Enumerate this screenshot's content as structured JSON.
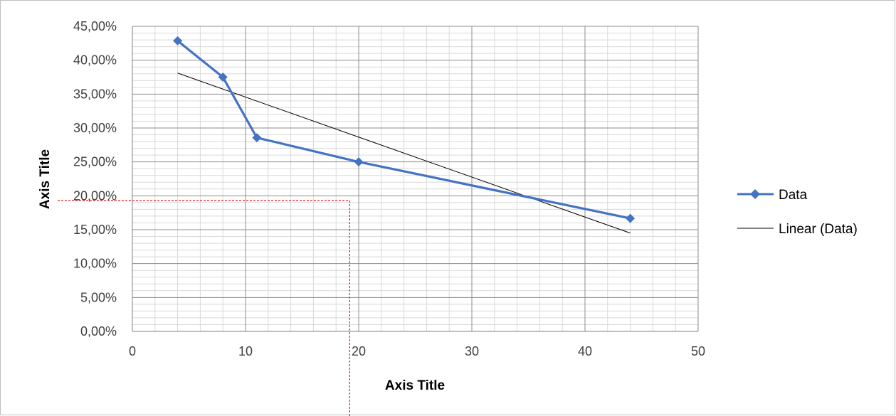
{
  "chart_data": {
    "type": "line",
    "xlabel": "Axis Title",
    "ylabel": "Axis Title",
    "xlim": [
      0,
      50
    ],
    "ylim": [
      0,
      0.45
    ],
    "x_ticks": [
      0,
      10,
      20,
      30,
      40,
      50
    ],
    "x_tick_labels": [
      "0",
      "10",
      "20",
      "30",
      "40",
      "50"
    ],
    "y_ticks": [
      0,
      0.05,
      0.1,
      0.15,
      0.2,
      0.25,
      0.3,
      0.35,
      0.4,
      0.45
    ],
    "y_tick_labels": [
      "0,00%",
      "5,00%",
      "10,00%",
      "15,00%",
      "20,00%",
      "25,00%",
      "30,00%",
      "35,00%",
      "40,00%",
      "45,00%"
    ],
    "grid": {
      "major": true,
      "minor": true
    },
    "legend_position": "right",
    "series": [
      {
        "name": "Data",
        "marker": "diamond",
        "color": "#4472c4",
        "x": [
          4,
          8,
          11,
          20,
          44
        ],
        "y": [
          0.4286,
          0.375,
          0.2857,
          0.25,
          0.1667
        ]
      }
    ],
    "trendline": {
      "name": "Linear (Data)",
      "type": "linear",
      "color": "#000000",
      "x": [
        4,
        44
      ],
      "y": [
        0.381,
        0.145
      ]
    },
    "annotation_guides": {
      "color": "#e02020",
      "style": "dashed",
      "x": 19.2,
      "y": 0.193
    }
  }
}
